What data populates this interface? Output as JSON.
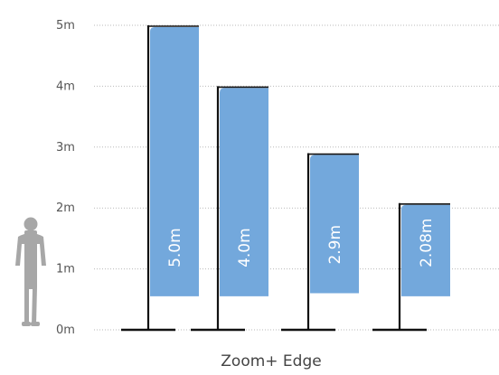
{
  "chart_data": {
    "type": "bar",
    "title": "Zoom+ Edge",
    "categories": [
      "5.0m",
      "4.0m",
      "2.9m",
      "2.08m"
    ],
    "values": [
      5.0,
      4.0,
      2.9,
      2.08
    ],
    "bar_bottom": [
      0.55,
      0.55,
      0.6,
      0.55
    ],
    "data_labels": [
      "5.0m",
      "4.0m",
      "2.9m",
      "2.08m"
    ],
    "y_ticks": [
      "0m",
      "1m",
      "2m",
      "3m",
      "4m",
      "5m"
    ],
    "ylim": [
      0,
      5
    ],
    "grid": true,
    "legend": "none",
    "colors": {
      "bar": "#73a8dc",
      "pole": "#111111",
      "grid": "#b9b9b9",
      "person": "#a7a7a7",
      "text": "#555555"
    }
  }
}
